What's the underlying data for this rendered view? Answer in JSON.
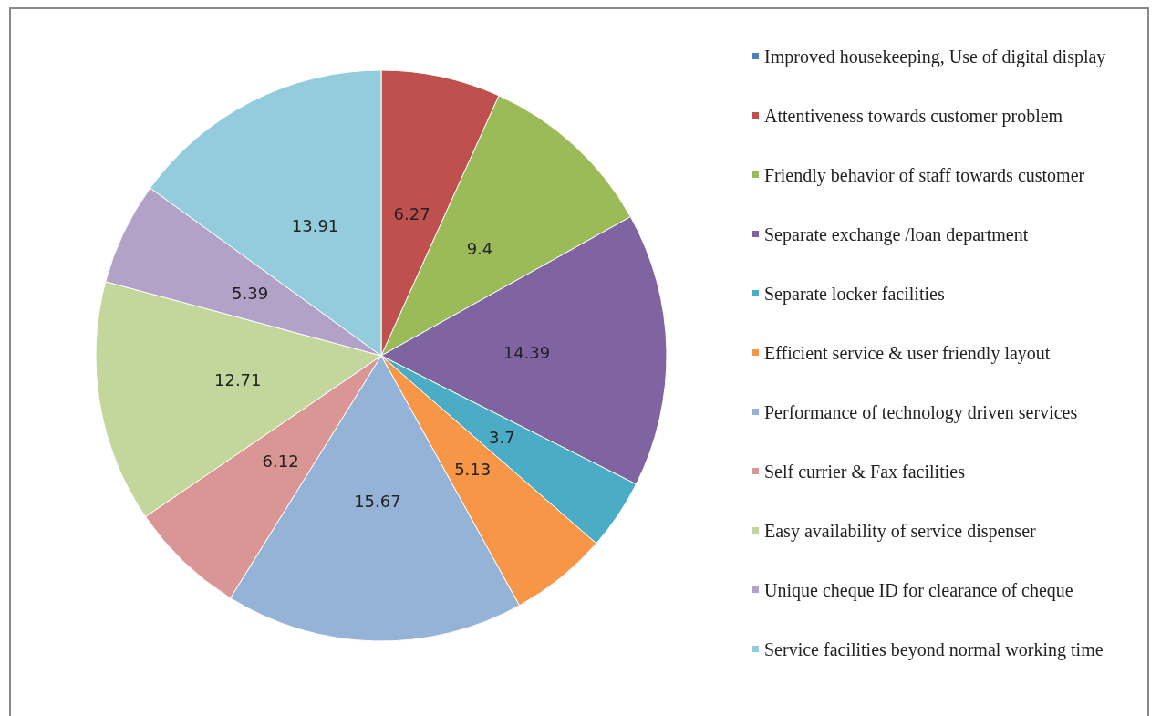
{
  "chart_data": {
    "type": "pie",
    "categories": [
      "Improved housekeeping, Use of digital display",
      "Attentiveness towards customer problem",
      "Friendly behavior of staff towards customer",
      "Separate exchange /loan department",
      "Separate locker facilities",
      "Efficient service & user friendly layout",
      "Performance of technology driven services",
      "Self currier & Fax facilities",
      "Easy availability of service dispenser",
      "Unique cheque ID for clearance of cheque",
      "Service facilities beyond normal working time"
    ],
    "values": [
      null,
      6.27,
      9.4,
      14.39,
      3.7,
      5.13,
      15.67,
      6.12,
      12.71,
      5.39,
      13.91
    ],
    "colors": [
      "#4f81bd",
      "#c0504d",
      "#9bbb59",
      "#8064a2",
      "#4bacc6",
      "#f79646",
      "#95b3d7",
      "#d99694",
      "#c3d69b",
      "#b3a2c7",
      "#93cddd"
    ],
    "data_labels": true,
    "legend": "right"
  }
}
